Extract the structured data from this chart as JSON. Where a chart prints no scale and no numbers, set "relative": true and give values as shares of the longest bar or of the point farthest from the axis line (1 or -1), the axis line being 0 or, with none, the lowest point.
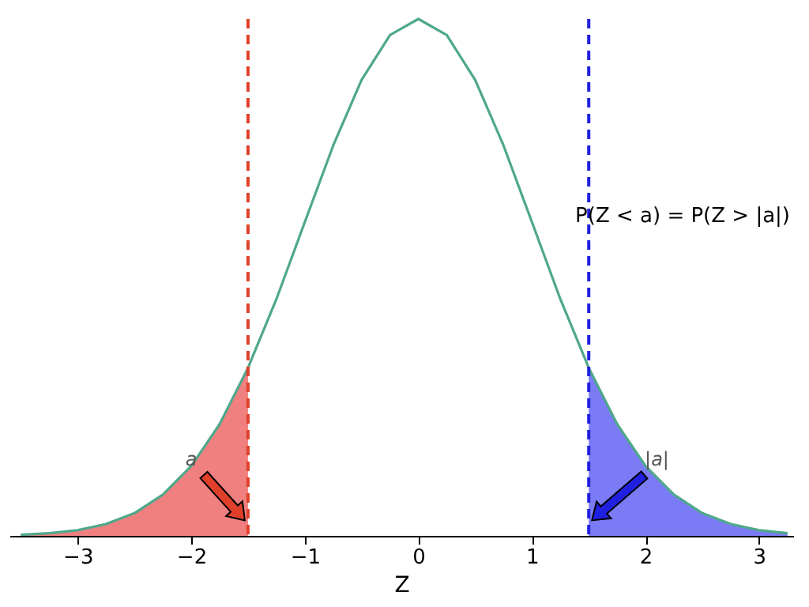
{
  "chart_data": {
    "type": "line",
    "xlabel": "Z",
    "relative": true,
    "xlim": [
      -3.6,
      3.3
    ],
    "xticks": [
      {
        "value": -3,
        "label": "−3"
      },
      {
        "value": -2,
        "label": "−2"
      },
      {
        "value": -1,
        "label": "−1"
      },
      0,
      1,
      2,
      3
    ],
    "grid": false,
    "series": [
      {
        "type": "area",
        "color": "#f08080",
        "x": [
          -3.5,
          -3.25,
          -3,
          -2.75,
          -2.5,
          -2.25,
          -2,
          -1.75,
          -1.5
        ],
        "values": [
          0.0022,
          0.0051,
          0.011,
          0.0228,
          0.0439,
          0.0796,
          0.135,
          0.216,
          0.325
        ]
      },
      {
        "type": "area",
        "color": "#7b7bf5",
        "x": [
          1.5,
          1.75,
          2,
          2.25,
          2.5,
          2.75,
          3,
          3.25
        ],
        "values": [
          0.325,
          0.216,
          0.135,
          0.0796,
          0.0439,
          0.0228,
          0.011,
          0.0051
        ]
      },
      {
        "color": "#4fa88a",
        "x": [
          -3.5,
          -3.25,
          -3,
          -2.75,
          -2.5,
          -2.25,
          -2,
          -1.75,
          -1.5,
          -1.25,
          -1,
          -0.75,
          -0.5,
          -0.25,
          0,
          0.25,
          0.5,
          0.75,
          1,
          1.25,
          1.5,
          1.75,
          2,
          2.25,
          2.5,
          2.75,
          3,
          3.25
        ],
        "values": [
          0.0022,
          0.0051,
          0.011,
          0.0228,
          0.0439,
          0.0796,
          0.135,
          0.216,
          0.325,
          0.458,
          0.607,
          0.755,
          0.882,
          0.969,
          1,
          0.969,
          0.882,
          0.755,
          0.607,
          0.458,
          0.325,
          0.216,
          0.135,
          0.0796,
          0.0439,
          0.0228,
          0.011,
          0.0051
        ]
      }
    ],
    "ref_lines": [
      {
        "axis": "x",
        "value": -1.5,
        "color": "#e0402a",
        "line_style": "dashed"
      },
      {
        "axis": "x",
        "value": 1.5,
        "color": "#2020e0",
        "line_style": "dashed"
      }
    ],
    "annotations": [
      {
        "text": "a",
        "x": -2.0,
        "y": 0.13
      },
      {
        "text": "|a|",
        "x": 2.1,
        "y": 0.13
      },
      "P(Z < a) = P(Z > |a|)"
    ]
  }
}
